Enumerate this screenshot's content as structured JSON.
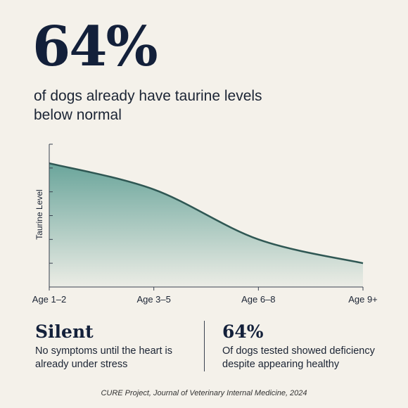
{
  "headline": {
    "value": "64%",
    "text": "of dogs already have taurine levels below normal"
  },
  "chart_data": {
    "type": "area",
    "y_label": "Taurine Level",
    "categories": [
      "Age 1–2",
      "Age 3–5",
      "Age 6–8",
      "Age 9+"
    ],
    "values": [
      5.2,
      4.1,
      2.0,
      1.0
    ],
    "color": "#2f5753",
    "fill": "#6aa59b",
    "ylim": [
      0,
      6
    ],
    "yticks": [
      1,
      2,
      3,
      4,
      5,
      6
    ]
  },
  "stats": [
    {
      "title": "Silent",
      "text": "No symptoms until the heart is already under stress"
    },
    {
      "title": "64%",
      "text": "Of dogs tested showed deficiency despite appearing healthy"
    }
  ],
  "source": "CURE Project, Journal of Veterinary Internal Medicine, 2024"
}
